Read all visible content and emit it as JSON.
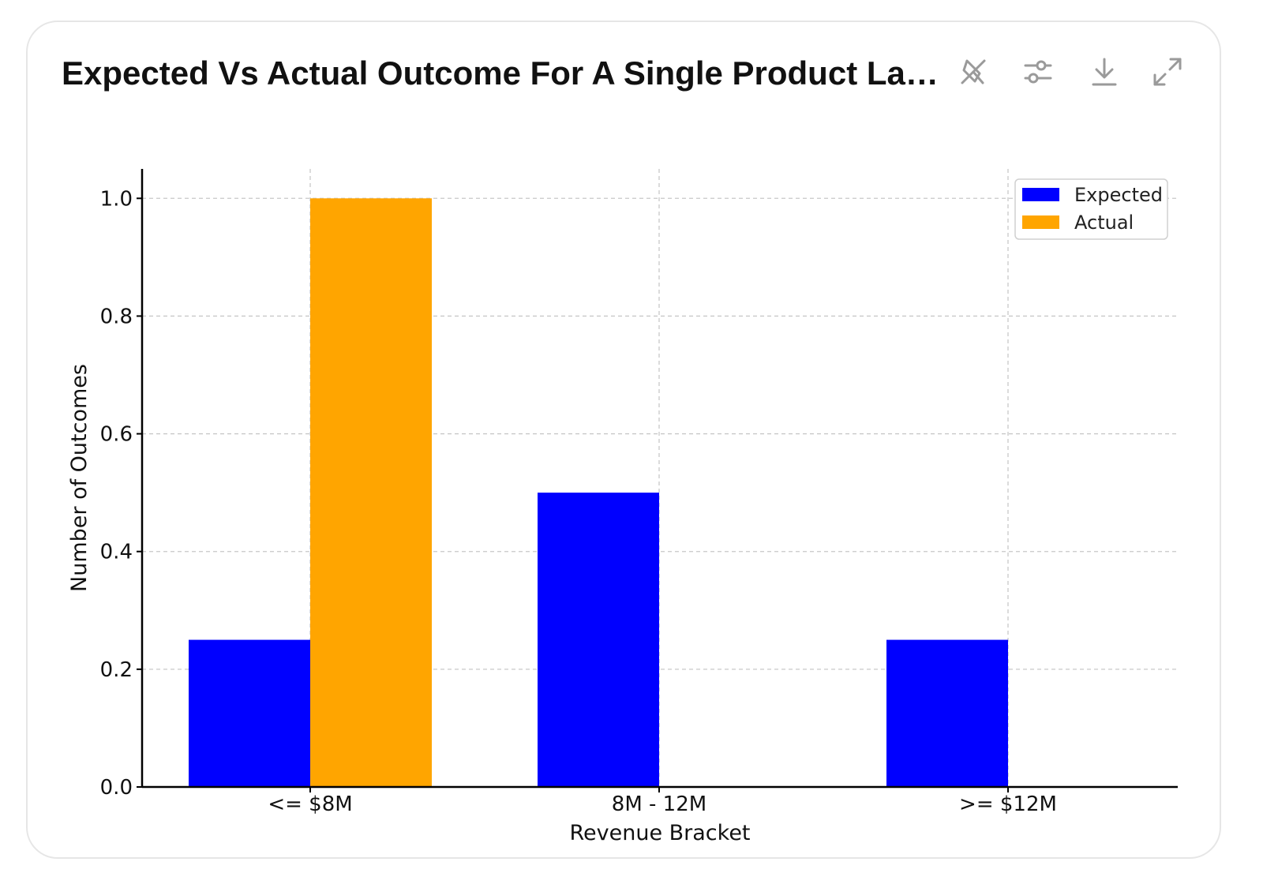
{
  "card": {
    "title": "Expected Vs Actual Outcome For A Single Product Launch",
    "toolbar": [
      {
        "name": "pin-icon"
      },
      {
        "name": "sliders-icon"
      },
      {
        "name": "download-icon"
      },
      {
        "name": "expand-icon"
      }
    ]
  },
  "chart_data": {
    "type": "bar",
    "categories": [
      "<= $8M",
      "8M - 12M",
      ">= $12M"
    ],
    "series": [
      {
        "name": "Expected",
        "values": [
          0.25,
          0.5,
          0.25
        ],
        "color": "#0000ff"
      },
      {
        "name": "Actual",
        "values": [
          1.0,
          0.0,
          0.0
        ],
        "color": "#ffa500"
      }
    ],
    "xlabel": "Revenue Bracket",
    "ylabel": "Number of Outcomes",
    "ylim": [
      0,
      1.05
    ],
    "yticks": [
      "0.0",
      "0.2",
      "0.4",
      "0.6",
      "0.8",
      "1.0"
    ],
    "grid": true,
    "legend": "top-right"
  }
}
